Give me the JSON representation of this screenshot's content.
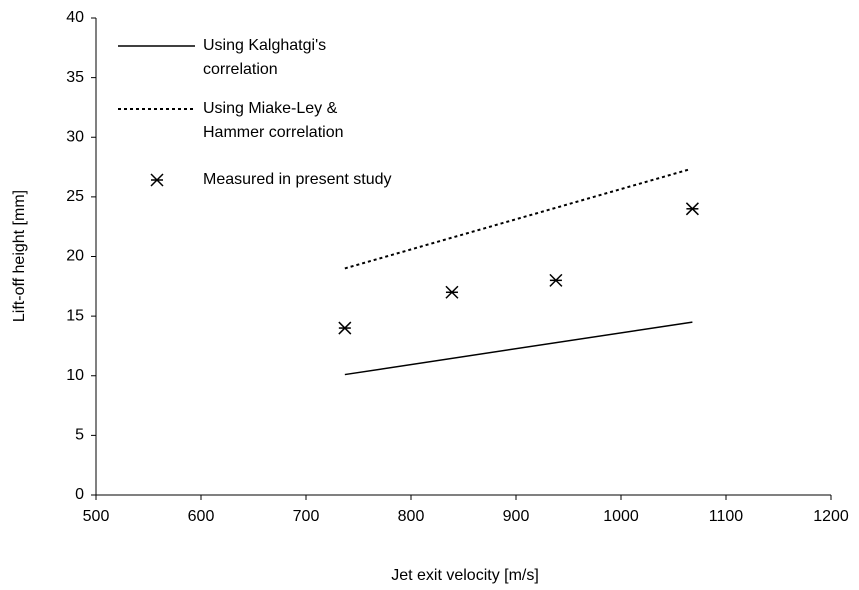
{
  "chart_data": {
    "type": "line",
    "xlabel": "Jet exit velocity [m/s]",
    "ylabel": "Lift-off height [mm]",
    "xlim": [
      500,
      1200
    ],
    "xticks": [
      500,
      600,
      700,
      800,
      900,
      1000,
      1100,
      1200
    ],
    "ylim": [
      0,
      40
    ],
    "yticks": [
      0,
      5,
      10,
      15,
      20,
      25,
      30,
      35,
      40
    ],
    "legend": "upper-left",
    "series": [
      {
        "name": "Using Kalghatgi's correlation",
        "color": "#000000",
        "style": "solid",
        "x": [
          737,
          1068
        ],
        "values": [
          10.1,
          14.5
        ]
      },
      {
        "name": "Using Miake-Ley & Hammer correlation",
        "color": "#000000",
        "style": "dotted",
        "x": [
          737,
          1065
        ],
        "values": [
          19,
          27.3
        ]
      },
      {
        "name": "Measured in present study",
        "color": "#000000",
        "style": "markers",
        "x": [
          737,
          839,
          938,
          1068
        ],
        "values": [
          14,
          17,
          18,
          24
        ]
      }
    ]
  }
}
